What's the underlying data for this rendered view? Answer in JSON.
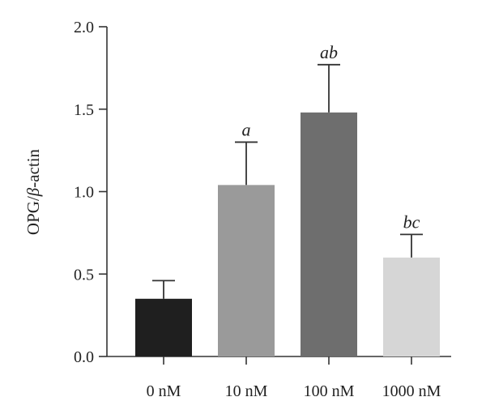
{
  "chart_data": {
    "type": "bar",
    "ylabel": "OPG/β-actin",
    "ylabel_prefix": "OPG/",
    "ylabel_symbol": "β",
    "ylabel_suffix": "-actin",
    "xlabel": "",
    "ylim": [
      0,
      2.0
    ],
    "yticks": [
      "0.0",
      "0.5",
      "1.0",
      "1.5",
      "2.0"
    ],
    "grid": false,
    "categories": [
      "0 nM",
      "10 nM",
      "100 nM",
      "1000 nM"
    ],
    "values": [
      0.35,
      1.04,
      1.48,
      0.6
    ],
    "errors": [
      0.11,
      0.26,
      0.29,
      0.14
    ],
    "significance": [
      "",
      "a",
      "ab",
      "bc"
    ],
    "colors": [
      "#1f1f1f",
      "#9a9a9a",
      "#6e6e6e",
      "#d6d6d6"
    ]
  }
}
